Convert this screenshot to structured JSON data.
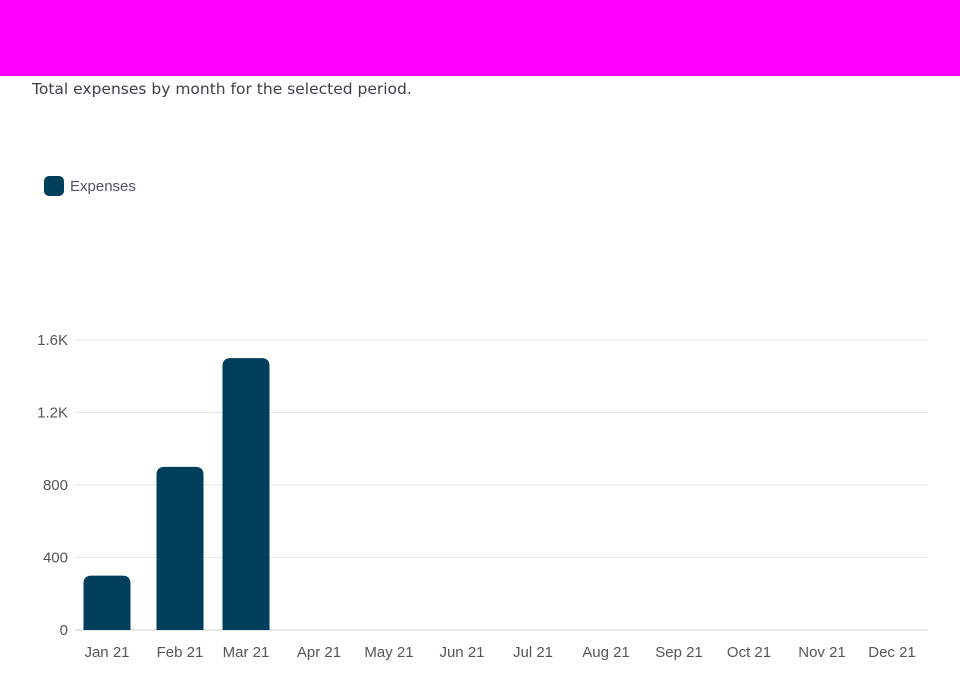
{
  "header": {
    "bar_color": "#ff00ff"
  },
  "subtitle": "Total expenses by month for the selected period.",
  "colors": {
    "bar": "#003f5c",
    "grid": "#e6e6e6",
    "axis": "#cccccc"
  },
  "chart_data": {
    "type": "bar",
    "title": "",
    "subtitle": "Total expenses by month for the selected period.",
    "xlabel": "",
    "ylabel": "",
    "categories": [
      "Jan 21",
      "Feb 21",
      "Mar 21",
      "Apr 21",
      "May 21",
      "Jun 21",
      "Jul 21",
      "Aug 21",
      "Sep 21",
      "Oct 21",
      "Nov 21",
      "Dec 21"
    ],
    "series": [
      {
        "name": "Expenses",
        "values": [
          300,
          900,
          1500,
          0,
          0,
          0,
          0,
          0,
          0,
          0,
          0,
          0
        ]
      }
    ],
    "ylim": [
      0,
      1600
    ],
    "yticks": [
      0,
      400,
      800,
      1200,
      1600
    ],
    "ytick_labels": [
      "0",
      "400",
      "800",
      "1.2K",
      "1.6K"
    ],
    "grid": true,
    "legend": "top-left"
  }
}
